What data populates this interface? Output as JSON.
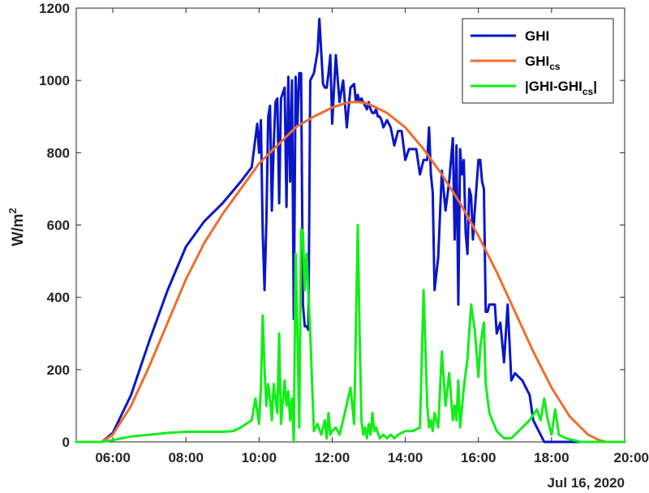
{
  "chart_data": {
    "type": "line",
    "ylabel_main": "W/m",
    "ylabel_sup": "2",
    "x_date_label": "Jul 16, 2020",
    "xlim": [
      5.0,
      20.0
    ],
    "ylim": [
      0,
      1200
    ],
    "x_ticks": [
      {
        "value": 6,
        "label": "06:00"
      },
      {
        "value": 8,
        "label": "08:00"
      },
      {
        "value": 10,
        "label": "10:00"
      },
      {
        "value": 12,
        "label": "12:00"
      },
      {
        "value": 14,
        "label": "14:00"
      },
      {
        "value": 16,
        "label": "16:00"
      },
      {
        "value": 18,
        "label": "18:00"
      },
      {
        "value": 20,
        "label": "20:00"
      }
    ],
    "y_ticks": [
      {
        "value": 0,
        "label": "0"
      },
      {
        "value": 200,
        "label": "200"
      },
      {
        "value": 400,
        "label": "400"
      },
      {
        "value": 600,
        "label": "600"
      },
      {
        "value": 800,
        "label": "800"
      },
      {
        "value": 1000,
        "label": "1000"
      },
      {
        "value": 1200,
        "label": "1200"
      }
    ],
    "grid": false,
    "legend_position": "top-right",
    "series": [
      {
        "name": "GHI",
        "legend_main": "GHI",
        "legend_sub": "",
        "legend_tail": "",
        "color": "#0a16c8",
        "x": [
          5.0,
          5.7,
          6.0,
          6.5,
          7.0,
          7.5,
          8.0,
          8.5,
          9.0,
          9.5,
          9.8,
          9.95,
          10.0,
          10.05,
          10.1,
          10.15,
          10.2,
          10.25,
          10.3,
          10.35,
          10.4,
          10.45,
          10.5,
          10.55,
          10.6,
          10.7,
          10.75,
          10.8,
          10.85,
          10.9,
          10.95,
          11.0,
          11.05,
          11.1,
          11.15,
          11.2,
          11.25,
          11.3,
          11.35,
          11.4,
          11.5,
          11.6,
          11.65,
          11.7,
          11.75,
          11.8,
          11.85,
          11.9,
          11.95,
          12.0,
          12.1,
          12.2,
          12.3,
          12.4,
          12.5,
          12.6,
          12.65,
          12.7,
          12.75,
          12.8,
          12.85,
          12.9,
          12.95,
          13.0,
          13.05,
          13.1,
          13.15,
          13.2,
          13.25,
          13.3,
          13.35,
          13.4,
          13.5,
          13.6,
          13.7,
          13.8,
          13.9,
          14.0,
          14.1,
          14.2,
          14.3,
          14.4,
          14.5,
          14.6,
          14.65,
          14.7,
          14.75,
          14.8,
          14.9,
          15.0,
          15.1,
          15.2,
          15.3,
          15.35,
          15.4,
          15.45,
          15.5,
          15.55,
          15.6,
          15.65,
          15.7,
          15.75,
          15.8,
          15.85,
          15.9,
          16.0,
          16.05,
          16.1,
          16.15,
          16.2,
          16.25,
          16.3,
          16.35,
          16.4,
          16.45,
          16.5,
          16.6,
          16.7,
          16.8,
          16.9,
          17.0,
          17.2,
          17.4,
          17.5,
          17.6,
          17.7,
          17.8,
          17.9,
          18.0,
          18.1,
          18.2,
          18.25,
          18.3,
          18.4,
          18.5,
          18.6,
          18.7,
          18.8,
          18.9,
          19.0,
          19.2,
          19.4,
          19.6,
          19.8,
          20.0
        ],
        "y": [
          0,
          0,
          25,
          130,
          280,
          420,
          540,
          610,
          660,
          720,
          760,
          880,
          800,
          890,
          580,
          420,
          610,
          900,
          930,
          640,
          820,
          940,
          950,
          660,
          950,
          980,
          650,
          1010,
          720,
          1000,
          340,
          1010,
          880,
          1020,
          1020,
          380,
          320,
          320,
          310,
          1000,
          1020,
          1080,
          1170,
          1080,
          990,
          980,
          980,
          1020,
          1070,
          880,
          1070,
          940,
          1000,
          870,
          980,
          990,
          940,
          960,
          940,
          950,
          940,
          930,
          920,
          940,
          920,
          910,
          910,
          920,
          900,
          900,
          890,
          870,
          890,
          870,
          820,
          860,
          860,
          780,
          810,
          810,
          810,
          740,
          780,
          780,
          870,
          740,
          690,
          420,
          510,
          750,
          640,
          720,
          840,
          560,
          820,
          380,
          810,
          740,
          780,
          580,
          520,
          700,
          680,
          560,
          640,
          780,
          780,
          720,
          700,
          360,
          360,
          380,
          380,
          380,
          380,
          300,
          330,
          220,
          380,
          170,
          190,
          170,
          130,
          60,
          40,
          20,
          0,
          0,
          0,
          0,
          0,
          0,
          0,
          0,
          0,
          0,
          0,
          0,
          0,
          0,
          0,
          0,
          0,
          0,
          0
        ]
      },
      {
        "name": "GHI_cs",
        "legend_main": "GHI",
        "legend_sub": "cs",
        "legend_tail": "",
        "color": "#ee6e2d",
        "x": [
          5.0,
          5.7,
          6.0,
          6.5,
          7.0,
          7.5,
          8.0,
          8.5,
          9.0,
          9.5,
          10.0,
          10.5,
          11.0,
          11.5,
          12.0,
          12.3,
          12.5,
          12.7,
          12.9,
          13.1,
          13.5,
          14.0,
          14.5,
          15.0,
          15.5,
          16.0,
          16.5,
          17.0,
          17.5,
          18.0,
          18.5,
          19.0,
          19.3,
          19.5,
          20.0
        ],
        "y": [
          0,
          0,
          20,
          100,
          210,
          330,
          450,
          550,
          630,
          700,
          770,
          820,
          870,
          900,
          925,
          935,
          940,
          940,
          938,
          930,
          910,
          870,
          810,
          740,
          660,
          570,
          470,
          360,
          250,
          150,
          70,
          20,
          5,
          0,
          0
        ]
      },
      {
        "name": "|GHI-GHI_cs|",
        "legend_main": "|GHI-GHI",
        "legend_sub": "cs",
        "legend_tail": "|",
        "color": "#12ee18",
        "x": [
          5.0,
          5.7,
          6.0,
          6.5,
          7.0,
          7.5,
          8.0,
          8.5,
          9.0,
          9.3,
          9.5,
          9.8,
          9.9,
          10.0,
          10.05,
          10.1,
          10.15,
          10.2,
          10.25,
          10.3,
          10.35,
          10.4,
          10.45,
          10.5,
          10.55,
          10.6,
          10.7,
          10.75,
          10.8,
          10.85,
          10.9,
          10.95,
          11.0,
          11.05,
          11.1,
          11.15,
          11.2,
          11.25,
          11.3,
          11.4,
          11.5,
          11.6,
          11.7,
          11.8,
          11.85,
          11.9,
          11.95,
          12.0,
          12.1,
          12.2,
          12.3,
          12.5,
          12.6,
          12.7,
          12.75,
          12.8,
          12.85,
          12.9,
          12.95,
          13.0,
          13.05,
          13.1,
          13.15,
          13.2,
          13.3,
          13.4,
          13.5,
          13.6,
          13.7,
          13.8,
          14.0,
          14.2,
          14.4,
          14.5,
          14.6,
          14.65,
          14.7,
          14.75,
          14.8,
          14.9,
          15.0,
          15.1,
          15.2,
          15.3,
          15.35,
          15.4,
          15.45,
          15.5,
          15.6,
          15.7,
          15.8,
          15.9,
          16.0,
          16.05,
          16.1,
          16.15,
          16.2,
          16.3,
          16.5,
          16.7,
          16.9,
          17.0,
          17.2,
          17.4,
          17.6,
          17.7,
          17.8,
          17.9,
          18.0,
          18.1,
          18.2,
          18.4,
          18.6,
          18.8,
          19.0,
          19.2,
          19.4,
          19.6,
          19.8,
          20.0
        ],
        "y": [
          0,
          0,
          5,
          15,
          20,
          25,
          28,
          28,
          28,
          30,
          40,
          60,
          120,
          50,
          150,
          350,
          200,
          100,
          160,
          120,
          60,
          160,
          120,
          80,
          300,
          50,
          170,
          100,
          140,
          60,
          120,
          0,
          520,
          300,
          40,
          590,
          580,
          420,
          520,
          300,
          30,
          50,
          20,
          60,
          10,
          80,
          20,
          30,
          40,
          20,
          60,
          150,
          50,
          600,
          300,
          60,
          20,
          40,
          10,
          50,
          20,
          80,
          30,
          40,
          10,
          20,
          10,
          20,
          10,
          20,
          30,
          30,
          40,
          420,
          100,
          40,
          60,
          30,
          80,
          40,
          250,
          100,
          190,
          60,
          100,
          60,
          170,
          40,
          150,
          230,
          380,
          310,
          180,
          260,
          300,
          330,
          160,
          80,
          30,
          10,
          10,
          20,
          40,
          60,
          90,
          60,
          120,
          60,
          20,
          90,
          20,
          10,
          5,
          0,
          0,
          0,
          0,
          0,
          0,
          0
        ]
      }
    ]
  }
}
